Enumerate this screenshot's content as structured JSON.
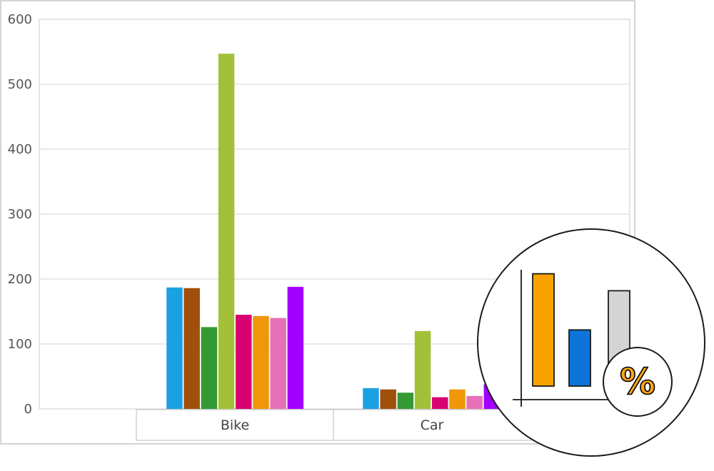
{
  "chart_data": {
    "type": "bar",
    "categories": [
      "Bike",
      "Car"
    ],
    "series": [
      {
        "color": "#1ba1e2",
        "values": [
          187,
          32
        ]
      },
      {
        "color": "#a0500a",
        "values": [
          186,
          30
        ]
      },
      {
        "color": "#339933",
        "values": [
          126,
          25
        ]
      },
      {
        "color": "#a2c139",
        "values": [
          547,
          120
        ]
      },
      {
        "color": "#d80073",
        "values": [
          145,
          18
        ]
      },
      {
        "color": "#f09609",
        "values": [
          143,
          30
        ]
      },
      {
        "color": "#e671b8",
        "values": [
          140,
          20
        ]
      },
      {
        "color": "#a200ff",
        "values": [
          188,
          38
        ]
      }
    ],
    "ylim": [
      0,
      600
    ],
    "yticks": [
      "0",
      "100",
      "200",
      "300",
      "400",
      "500",
      "600"
    ],
    "grid": true,
    "title": "",
    "xlabel": "",
    "ylabel": ""
  },
  "overlay_icon": {
    "name": "percent-bar-chart-icon",
    "text": "%",
    "bar_colors": [
      "#f9a300",
      "#0f74d8",
      "#d4d4d4"
    ],
    "bar_values": [
      0.86,
      0.43,
      0.73
    ]
  }
}
